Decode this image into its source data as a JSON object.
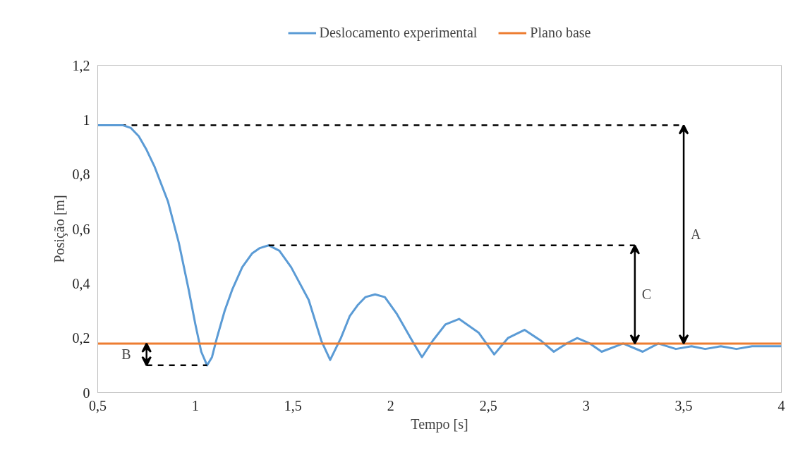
{
  "chart_data": {
    "type": "line",
    "xlabel": "Tempo [s]",
    "ylabel": "Posição [m]",
    "xlim": [
      0.5,
      4
    ],
    "xticks": [
      {
        "value": 0.5,
        "label": "0,5"
      },
      1,
      {
        "value": 1.5,
        "label": "1,5"
      },
      2,
      {
        "value": 2.5,
        "label": "2,5"
      },
      3,
      {
        "value": 3.5,
        "label": "3,5"
      },
      4
    ],
    "ylim": [
      0,
      1.2
    ],
    "yticks": [
      0,
      {
        "value": 0.2,
        "label": "0,2"
      },
      {
        "value": 0.4,
        "label": "0,4"
      },
      {
        "value": 0.6,
        "label": "0,6"
      },
      {
        "value": 0.8,
        "label": "0,8"
      },
      1,
      {
        "value": 1.2,
        "label": "1,2"
      }
    ],
    "legend": "top",
    "series": [
      {
        "name": "Deslocamento experimental",
        "color": "#5b9bd5",
        "x": [
          0.5,
          0.55,
          0.6,
          0.63,
          0.67,
          0.71,
          0.75,
          0.79,
          0.86,
          0.915,
          0.965,
          1.0,
          1.03,
          1.06,
          1.085,
          1.11,
          1.15,
          1.19,
          1.24,
          1.29,
          1.33,
          1.375,
          1.43,
          1.49,
          1.58,
          1.645,
          1.69,
          1.745,
          1.79,
          1.83,
          1.87,
          1.92,
          1.97,
          2.03,
          2.11,
          2.16,
          2.215,
          2.28,
          2.35,
          2.45,
          2.53,
          2.6,
          2.685,
          2.77,
          2.835,
          2.9,
          2.955,
          3.02,
          3.08,
          3.19,
          3.29,
          3.37,
          3.46,
          3.54,
          3.61,
          3.69,
          3.77,
          3.85,
          4.0
        ],
        "values": [
          0.98,
          0.98,
          0.98,
          0.98,
          0.97,
          0.94,
          0.89,
          0.83,
          0.7,
          0.55,
          0.38,
          0.25,
          0.15,
          0.1,
          0.13,
          0.2,
          0.3,
          0.38,
          0.46,
          0.51,
          0.53,
          0.54,
          0.52,
          0.46,
          0.34,
          0.19,
          0.12,
          0.2,
          0.28,
          0.32,
          0.35,
          0.36,
          0.35,
          0.29,
          0.19,
          0.13,
          0.19,
          0.25,
          0.27,
          0.22,
          0.14,
          0.2,
          0.23,
          0.19,
          0.15,
          0.18,
          0.2,
          0.18,
          0.15,
          0.18,
          0.15,
          0.18,
          0.16,
          0.17,
          0.16,
          0.17,
          0.16,
          0.17,
          0.17
        ]
      },
      {
        "name": "Plano base",
        "color": "#ed7d31",
        "x": [
          0.5,
          4
        ],
        "values": [
          0.18,
          0.18
        ]
      }
    ],
    "ref_lines": [
      {
        "axis": "y",
        "value": 0.98,
        "color": "#000000",
        "line_style": "dashed"
      }
    ],
    "annotations": [
      "A",
      "C",
      "B"
    ]
  }
}
